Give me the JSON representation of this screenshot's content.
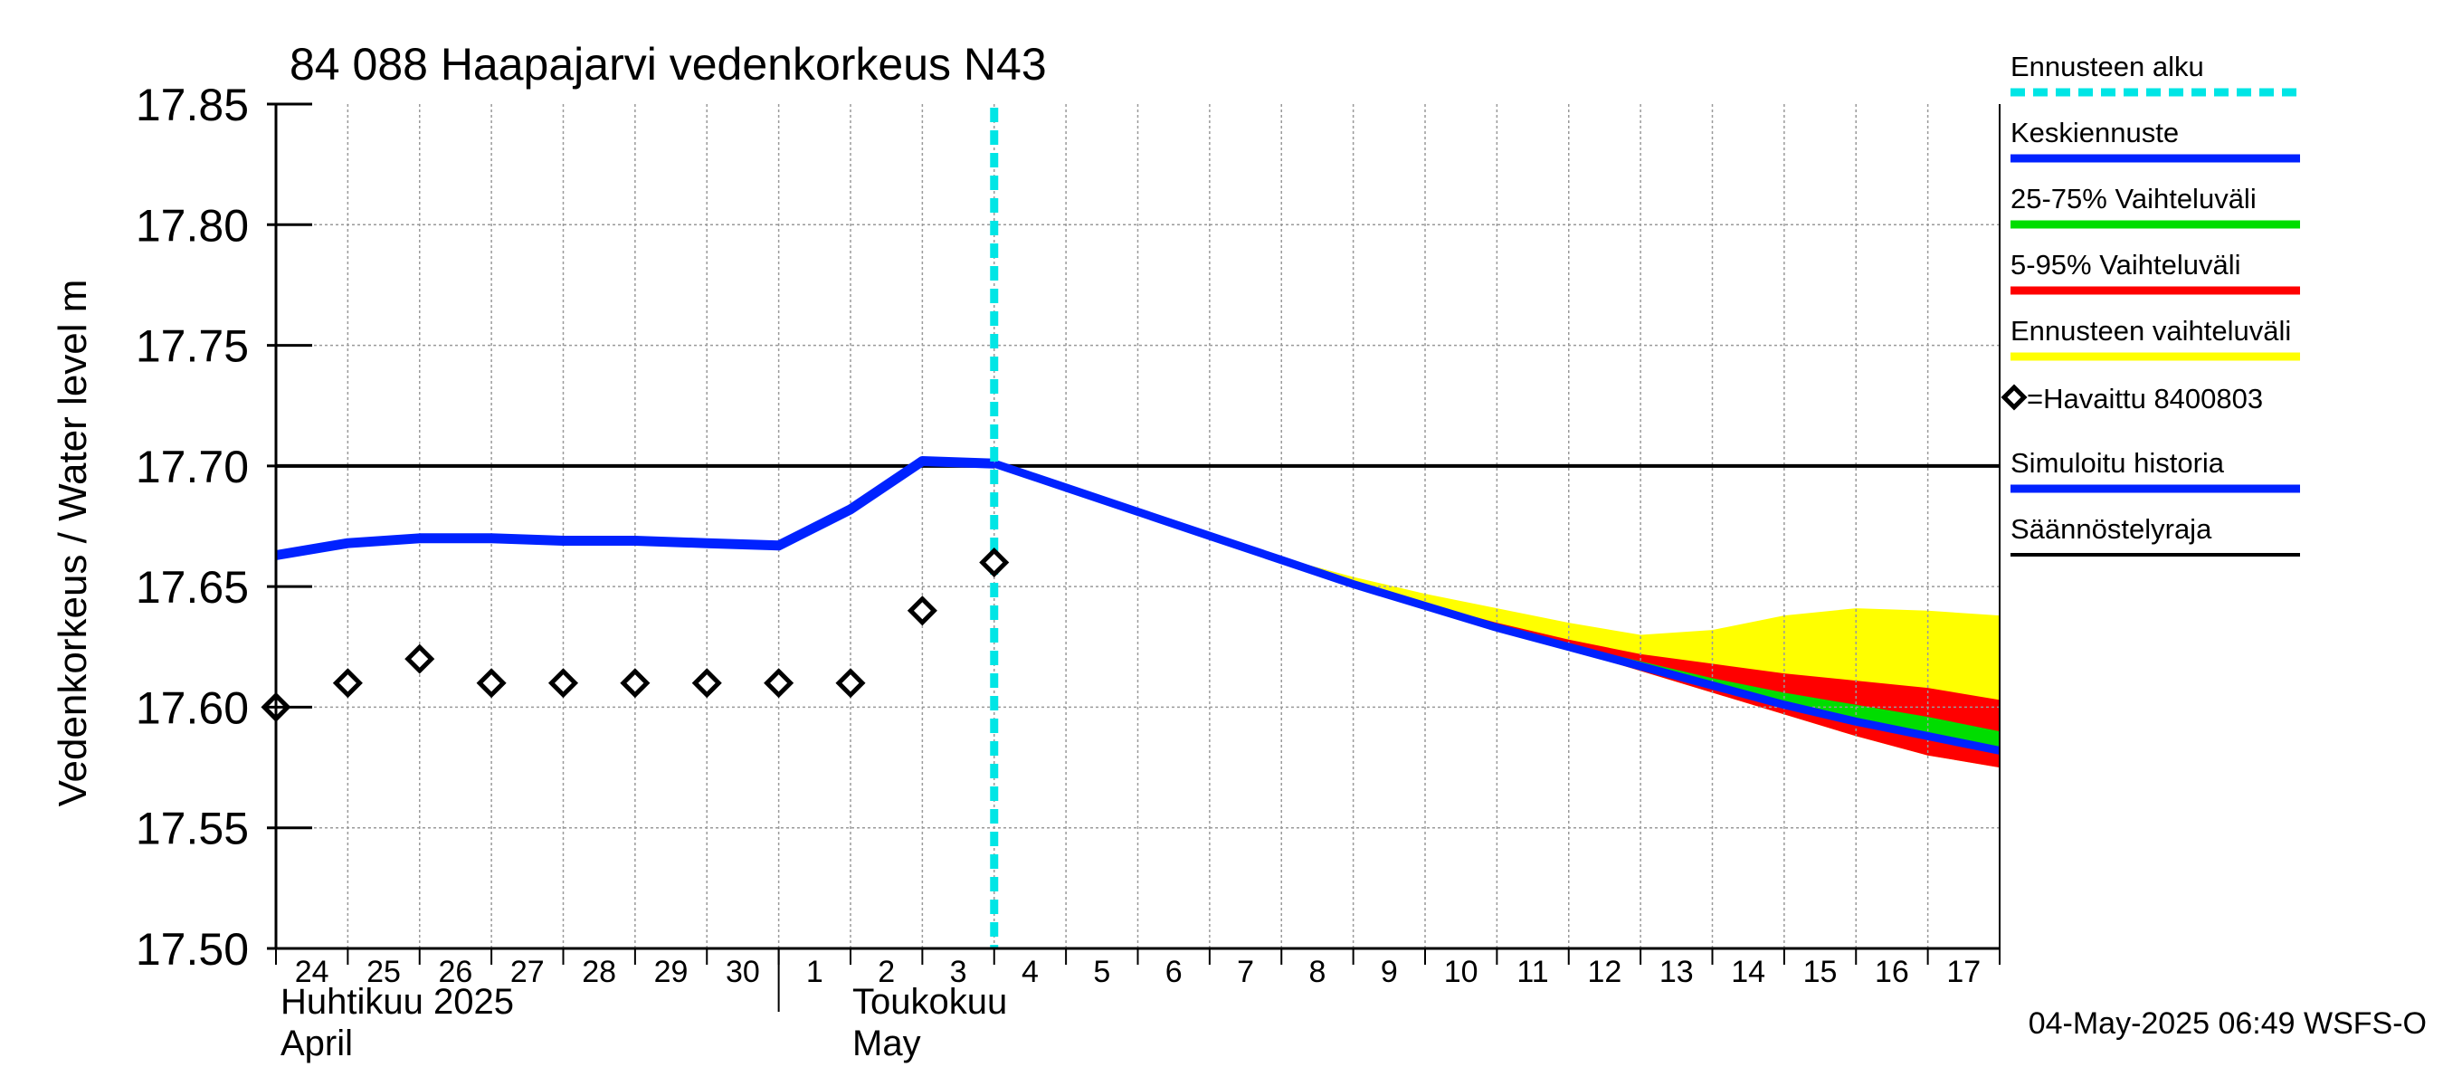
{
  "chart_data": {
    "type": "line",
    "title": "84 088 Haapajarvi vedenkorkeus N43",
    "ylabel": "Vedenkorkeus / Water level   m",
    "ylim": [
      17.5,
      17.85
    ],
    "yticks": [
      "17.85",
      "17.80",
      "17.75",
      "17.70",
      "17.65",
      "17.60",
      "17.55",
      "17.50"
    ],
    "xrange_days": [
      0,
      24
    ],
    "x_day_labels": [
      "24",
      "25",
      "26",
      "27",
      "28",
      "29",
      "30",
      "1",
      "2",
      "3",
      "4",
      "5",
      "6",
      "7",
      "8",
      "9",
      "10",
      "11",
      "12",
      "13",
      "14",
      "15",
      "16",
      "17"
    ],
    "month_labels": [
      {
        "fi": "Huhtikuu  2025",
        "en": "April"
      },
      {
        "fi": "Toukokuu",
        "en": "May"
      }
    ],
    "forecast_start_day": 10,
    "regulation_limit": 17.7,
    "observed": {
      "name": "=Havaittu 8400803",
      "x": [
        0,
        1,
        2,
        3,
        4,
        5,
        6,
        7,
        8,
        9,
        10
      ],
      "y": [
        17.6,
        17.61,
        17.62,
        17.61,
        17.61,
        17.61,
        17.61,
        17.61,
        17.61,
        17.64,
        17.66
      ]
    },
    "simulated_history": {
      "name": "Simuloitu historia",
      "x": [
        0,
        1,
        2,
        3,
        4,
        5,
        6,
        7,
        8,
        9,
        10
      ],
      "y": [
        17.663,
        17.668,
        17.67,
        17.67,
        17.669,
        17.669,
        17.668,
        17.667,
        17.682,
        17.702,
        17.701
      ]
    },
    "forecast_x": [
      10,
      11,
      12,
      13,
      14,
      15,
      16,
      17,
      18,
      19,
      20,
      21,
      22,
      23,
      24
    ],
    "mean_forecast": {
      "name": "Keskiennuste",
      "y": [
        17.701,
        17.691,
        17.681,
        17.671,
        17.661,
        17.651,
        17.642,
        17.633,
        17.625,
        17.617,
        17.609,
        17.601,
        17.594,
        17.588,
        17.582
      ]
    },
    "range_25_75": {
      "name": "25-75% Vaihteluväli",
      "low": [
        17.701,
        17.691,
        17.681,
        17.671,
        17.661,
        17.651,
        17.642,
        17.633,
        17.625,
        17.617,
        17.609,
        17.601,
        17.594,
        17.587,
        17.581
      ],
      "high": [
        17.701,
        17.691,
        17.681,
        17.671,
        17.661,
        17.652,
        17.643,
        17.634,
        17.626,
        17.619,
        17.612,
        17.606,
        17.601,
        17.596,
        17.59
      ]
    },
    "range_5_95": {
      "name": "5-95% Vaihteluväli",
      "low": [
        17.701,
        17.691,
        17.681,
        17.671,
        17.661,
        17.651,
        17.642,
        17.633,
        17.624,
        17.615,
        17.606,
        17.597,
        17.588,
        17.58,
        17.575
      ],
      "high": [
        17.701,
        17.691,
        17.681,
        17.671,
        17.661,
        17.652,
        17.643,
        17.635,
        17.628,
        17.622,
        17.618,
        17.614,
        17.611,
        17.608,
        17.603
      ]
    },
    "range_total": {
      "name": "Ennusteen vaihteluväli",
      "low": [
        17.701,
        17.691,
        17.681,
        17.671,
        17.661,
        17.651,
        17.642,
        17.633,
        17.624,
        17.615,
        17.606,
        17.597,
        17.588,
        17.58,
        17.575
      ],
      "high": [
        17.701,
        17.691,
        17.681,
        17.671,
        17.662,
        17.654,
        17.647,
        17.641,
        17.635,
        17.63,
        17.632,
        17.638,
        17.641,
        17.64,
        17.638
      ]
    },
    "legend": [
      {
        "label": "Ennusteen alku",
        "color": "#00e5e5",
        "style": "dashed"
      },
      {
        "label": "Keskiennuste",
        "color": "#0022ff",
        "style": "solid"
      },
      {
        "label": "25-75% Vaihteluväli",
        "color": "#00dd00",
        "style": "solid"
      },
      {
        "label": "5-95% Vaihteluväli",
        "color": "#ff0000",
        "style": "solid"
      },
      {
        "label": "Ennusteen vaihteluväli",
        "color": "#ffff00",
        "style": "solid"
      },
      {
        "label": "=Havaittu 8400803",
        "color": "#000000",
        "style": "marker"
      },
      {
        "label": "Simuloitu historia",
        "color": "#0022ff",
        "style": "solid"
      },
      {
        "label": "Säännöstelyraja",
        "color": "#000000",
        "style": "solid"
      }
    ],
    "footer": "04-May-2025 06:49 WSFS-O"
  }
}
